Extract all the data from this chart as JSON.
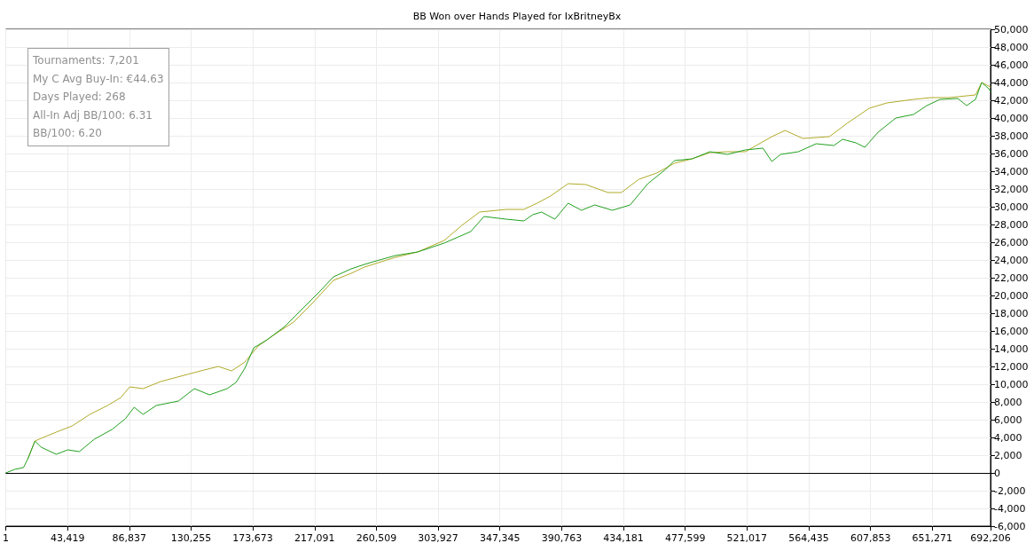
{
  "chart_data": {
    "type": "line",
    "title": "BB Won over Hands Played for IxBritneyBx",
    "annotations": [
      "Tournaments: 7,201",
      "My C Avg Buy-In: €44.63",
      "Days Played: 268",
      "All-In Adj BB/100: 6.31",
      "BB/100: 6.20"
    ],
    "xlim": [
      1,
      692206
    ],
    "xticks": [
      {
        "value": 1,
        "label": "1"
      },
      {
        "value": 43419,
        "label": "43,419"
      },
      {
        "value": 86837,
        "label": "86,837"
      },
      {
        "value": 130255,
        "label": "130,255"
      },
      {
        "value": 173673,
        "label": "173,673"
      },
      {
        "value": 217091,
        "label": "217,091"
      },
      {
        "value": 260509,
        "label": "260,509"
      },
      {
        "value": 303927,
        "label": "303,927"
      },
      {
        "value": 347345,
        "label": "347,345"
      },
      {
        "value": 390763,
        "label": "390,763"
      },
      {
        "value": 434181,
        "label": "434,181"
      },
      {
        "value": 477599,
        "label": "477,599"
      },
      {
        "value": 521017,
        "label": "521,017"
      },
      {
        "value": 564435,
        "label": "564,435"
      },
      {
        "value": 607853,
        "label": "607,853"
      },
      {
        "value": 651271,
        "label": "651,271"
      },
      {
        "value": 692206,
        "label": "692,206"
      }
    ],
    "ylim": [
      -6000,
      50000
    ],
    "yticks": [
      {
        "value": -6000,
        "label": "-6,000"
      },
      {
        "value": -4000,
        "label": "-4,000"
      },
      {
        "value": -2000,
        "label": "-2,000"
      },
      0,
      {
        "value": 2000,
        "label": "2,000"
      },
      {
        "value": 4000,
        "label": "4,000"
      },
      {
        "value": 6000,
        "label": "6,000"
      },
      {
        "value": 8000,
        "label": "8,000"
      },
      {
        "value": 10000,
        "label": "10,000"
      },
      {
        "value": 12000,
        "label": "12,000"
      },
      {
        "value": 14000,
        "label": "14,000"
      },
      {
        "value": 16000,
        "label": "16,000"
      },
      {
        "value": 18000,
        "label": "18,000"
      },
      {
        "value": 20000,
        "label": "20,000"
      },
      {
        "value": 22000,
        "label": "22,000"
      },
      {
        "value": 24000,
        "label": "24,000"
      },
      {
        "value": 26000,
        "label": "26,000"
      },
      {
        "value": 28000,
        "label": "28,000"
      },
      {
        "value": 30000,
        "label": "30,000"
      },
      {
        "value": 32000,
        "label": "32,000"
      },
      {
        "value": 34000,
        "label": "34,000"
      },
      {
        "value": 36000,
        "label": "36,000"
      },
      {
        "value": 38000,
        "label": "38,000"
      },
      {
        "value": 40000,
        "label": "40,000"
      },
      {
        "value": 42000,
        "label": "42,000"
      },
      {
        "value": 44000,
        "label": "44,000"
      },
      {
        "value": 46000,
        "label": "46,000"
      },
      {
        "value": 48000,
        "label": "48,000"
      },
      {
        "value": 50000,
        "label": "50,000"
      }
    ],
    "grid": true,
    "marker": "none",
    "line_style": "solid",
    "ref_lines": [
      {
        "axis": "y",
        "value": 0,
        "color": "#000000"
      }
    ],
    "series": [
      {
        "color": "#b0aa28",
        "x": [
          15560,
          20540,
          24900,
          35480,
          46690,
          59140,
          71590,
          80930,
          87150,
          96490,
          108940,
          127610,
          136950,
          149400,
          158740,
          168080,
          177410,
          189860,
          202310,
          214760,
          230330,
          242780,
          252110,
          273900,
          289460,
          308130,
          320580,
          333040,
          351710,
          364160,
          373500,
          382840,
          395290,
          407740,
          423300,
          432640,
          445090,
          457540,
          469990,
          482440,
          494890,
          507340,
          519790,
          538460,
          547800,
          560250,
          578920,
          591380,
          606940,
          619380,
          638060,
          650510,
          662960,
          681640,
          685990,
          692206
        ],
        "values": [
          1600,
          3600,
          3900,
          4600,
          5300,
          6600,
          7600,
          8500,
          9700,
          9500,
          10300,
          11100,
          11500,
          12000,
          11500,
          12500,
          14300,
          15700,
          17000,
          19000,
          21700,
          22500,
          23200,
          24300,
          24900,
          26200,
          27900,
          29400,
          29700,
          29700,
          30400,
          31200,
          32600,
          32500,
          31600,
          31600,
          33100,
          33800,
          34900,
          35400,
          36100,
          36200,
          36200,
          37900,
          38600,
          37700,
          37900,
          39400,
          41100,
          41700,
          42100,
          42300,
          42300,
          42600,
          44000,
          43500
        ]
      },
      {
        "color": "#22a020",
        "x": [
          1,
          6225,
          12450,
          15560,
          20540,
          24900,
          35480,
          43580,
          51670,
          62250,
          74700,
          84040,
          90260,
          96490,
          105830,
          121390,
          132590,
          143180,
          155630,
          161850,
          168080,
          174300,
          183640,
          196090,
          208540,
          220990,
          230330,
          242780,
          252110,
          258340,
          273900,
          289460,
          308130,
          326810,
          336150,
          351710,
          364160,
          370390,
          376610,
          385950,
          395290,
          404630,
          413960,
          426410,
          438860,
          451310,
          463760,
          469990,
          482440,
          494890,
          507340,
          519790,
          532240,
          538460,
          544690,
          557140,
          569590,
          582040,
          588260,
          597600,
          603830,
          613160,
          625610,
          638060,
          647400,
          656740,
          669190,
          675410,
          681640,
          685990,
          690970,
          692206
        ],
        "values": [
          0,
          400,
          600,
          1600,
          3600,
          2900,
          2100,
          2600,
          2400,
          3800,
          4900,
          6100,
          7400,
          6600,
          7600,
          8100,
          9500,
          8800,
          9500,
          10200,
          11800,
          14100,
          15000,
          16500,
          18500,
          20500,
          22100,
          23000,
          23500,
          23800,
          24500,
          24900,
          25900,
          27200,
          28900,
          28600,
          28400,
          29100,
          29400,
          28600,
          30400,
          29600,
          30200,
          29600,
          30200,
          32600,
          34200,
          35200,
          35400,
          36200,
          35900,
          36400,
          36600,
          35100,
          35900,
          36200,
          37100,
          36900,
          37600,
          37200,
          36700,
          38400,
          40000,
          40400,
          41400,
          42100,
          42200,
          41400,
          42100,
          44000,
          43300,
          43000
        ]
      }
    ]
  }
}
